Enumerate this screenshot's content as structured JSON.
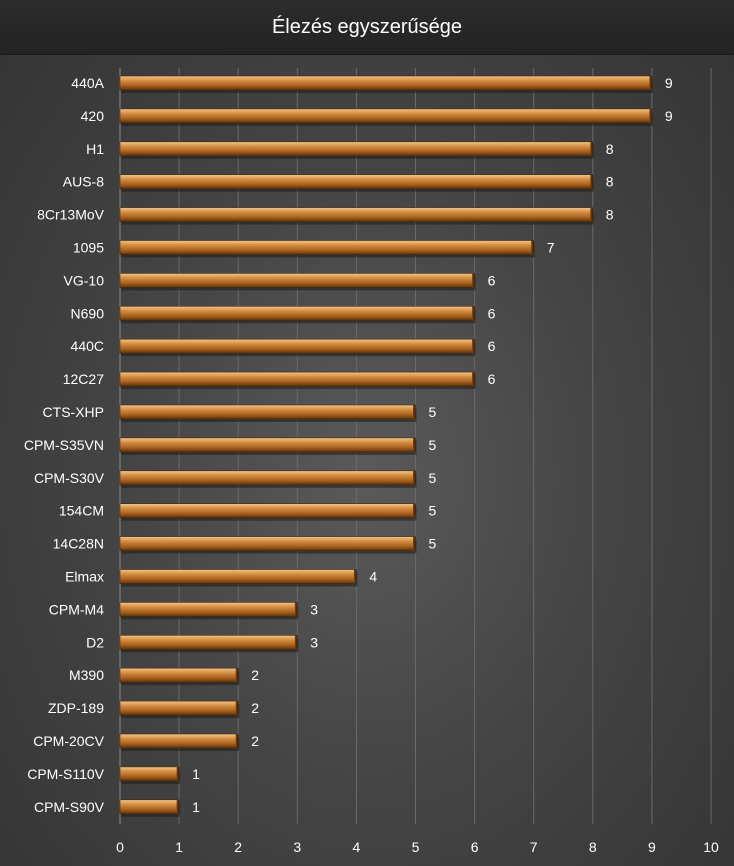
{
  "chart_data": {
    "type": "bar",
    "orientation": "horizontal",
    "title": "Élezés egyszerűsége",
    "categories": [
      "440A",
      "420",
      "H1",
      "AUS-8",
      "8Cr13MoV",
      "1095",
      "VG-10",
      "N690",
      "440C",
      "12C27",
      "CTS-XHP",
      "CPM-S35VN",
      "CPM-S30V",
      "154CM",
      "14C28N",
      "Elmax",
      "CPM-M4",
      "D2",
      "M390",
      "ZDP-189",
      "CPM-20CV",
      "CPM-S110V",
      "CPM-S90V"
    ],
    "values": [
      9,
      9,
      8,
      8,
      8,
      7,
      6,
      6,
      6,
      6,
      5,
      5,
      5,
      5,
      5,
      4,
      3,
      3,
      2,
      2,
      2,
      1,
      1
    ],
    "xlim": [
      0,
      10
    ],
    "xticks": [
      "0",
      "1",
      "2",
      "3",
      "4",
      "5",
      "6",
      "7",
      "8",
      "9",
      "10"
    ],
    "grid": true,
    "legend": false,
    "bar_color": "#c87a2c"
  }
}
